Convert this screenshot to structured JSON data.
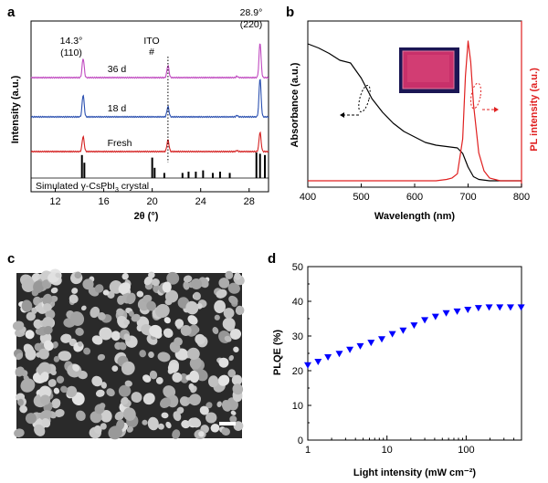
{
  "panels": {
    "a": {
      "label": "a",
      "xlabel": "2θ (°)",
      "ylabel": "Intensity (a.u.)",
      "xticks": [
        "12",
        "16",
        "20",
        "24",
        "28"
      ],
      "peak1": {
        "angle": "14.3°",
        "hkl": "(110)"
      },
      "peak2": {
        "angle": "28.9°",
        "hkl": "(220)"
      },
      "ito_label": "ITO",
      "ito_mark": "#",
      "traces": [
        {
          "name": "36 d",
          "color": "#c04ac0"
        },
        {
          "name": "18 d",
          "color": "#2b50b0"
        },
        {
          "name": "Fresh",
          "color": "#d42020"
        }
      ],
      "reference_label": "Simulated γ-CsPbI",
      "reference_sub": "3",
      "reference_suffix": " crystal"
    },
    "b": {
      "label": "b",
      "xlabel": "Wavelength (nm)",
      "ylabel_left": "Absorbance (a.u.)",
      "ylabel_right": "PL intensity (a.u.)",
      "xticks": [
        "400",
        "500",
        "600",
        "700",
        "800"
      ],
      "abs_color": "#000000",
      "pl_color": "#e02020"
    },
    "c": {
      "label": "c"
    },
    "d": {
      "label": "d",
      "xlabel": "Light intensity (mW cm⁻²)",
      "ylabel": "PLQE (%)",
      "xticks": [
        "1",
        "10",
        "100"
      ],
      "yticks": [
        "0",
        "10",
        "20",
        "30",
        "40",
        "50"
      ],
      "marker_color": "#0000ff"
    }
  },
  "chart_data": [
    {
      "panel": "a",
      "type": "line",
      "xlabel": "2θ (°)",
      "ylabel": "Intensity (a.u.)",
      "xlim": [
        10,
        29.6
      ],
      "series": [
        {
          "name": "36 d",
          "peaks": [
            {
              "x": 14.3,
              "h": 0.55
            },
            {
              "x": 21.3,
              "h": 0.35
            },
            {
              "x": 28.9,
              "h": 1.0
            }
          ]
        },
        {
          "name": "18 d",
          "peaks": [
            {
              "x": 14.3,
              "h": 0.6
            },
            {
              "x": 21.3,
              "h": 0.28
            },
            {
              "x": 28.9,
              "h": 1.05
            }
          ]
        },
        {
          "name": "Fresh",
          "peaks": [
            {
              "x": 14.3,
              "h": 0.55
            },
            {
              "x": 21.3,
              "h": 0.42
            },
            {
              "x": 28.9,
              "h": 0.7
            }
          ]
        }
      ],
      "reference_sticks": [
        {
          "x": 14.2,
          "h": 0.9
        },
        {
          "x": 14.4,
          "h": 0.6
        },
        {
          "x": 20.0,
          "h": 0.8
        },
        {
          "x": 20.2,
          "h": 0.4
        },
        {
          "x": 21.0,
          "h": 0.2
        },
        {
          "x": 22.5,
          "h": 0.2
        },
        {
          "x": 23.0,
          "h": 0.25
        },
        {
          "x": 23.6,
          "h": 0.25
        },
        {
          "x": 24.2,
          "h": 0.3
        },
        {
          "x": 25.0,
          "h": 0.2
        },
        {
          "x": 25.6,
          "h": 0.25
        },
        {
          "x": 26.4,
          "h": 0.2
        },
        {
          "x": 28.6,
          "h": 1.0
        },
        {
          "x": 28.9,
          "h": 0.95
        },
        {
          "x": 29.3,
          "h": 0.9
        }
      ]
    },
    {
      "panel": "b",
      "type": "line",
      "xlabel": "Wavelength (nm)",
      "ylabel": "Absorbance (a.u.)",
      "y2label": "PL intensity (a.u.)",
      "xlim": [
        400,
        800
      ],
      "series": [
        {
          "name": "Absorbance",
          "x": [
            400,
            420,
            440,
            460,
            480,
            500,
            520,
            540,
            560,
            580,
            600,
            620,
            640,
            660,
            680,
            690,
            700,
            710,
            720,
            740,
            760,
            800
          ],
          "y": [
            1.0,
            0.97,
            0.93,
            0.88,
            0.86,
            0.75,
            0.6,
            0.5,
            0.42,
            0.36,
            0.32,
            0.28,
            0.26,
            0.25,
            0.24,
            0.2,
            0.1,
            0.03,
            0.01,
            0.0,
            0.0,
            0.0
          ]
        },
        {
          "name": "PL",
          "x": [
            600,
            640,
            660,
            670,
            680,
            690,
            695,
            700,
            705,
            710,
            720,
            730,
            740,
            760,
            800
          ],
          "y": [
            0.0,
            0.0,
            0.01,
            0.02,
            0.05,
            0.3,
            0.75,
            1.0,
            0.85,
            0.55,
            0.2,
            0.07,
            0.02,
            0.0,
            0.0
          ]
        }
      ]
    },
    {
      "panel": "d",
      "type": "scatter",
      "xlabel": "Light intensity (mW cm⁻²)",
      "ylabel": "PLQE (%)",
      "xscale": "log",
      "xlim": [
        1,
        500
      ],
      "ylim": [
        0,
        50
      ],
      "series": [
        {
          "x": [
            1.0,
            1.35,
            1.8,
            2.5,
            3.4,
            4.6,
            6.3,
            8.6,
            11.7,
            16,
            22,
            30,
            41,
            56,
            77,
            105,
            143,
            195,
            266,
            363,
            495
          ],
          "y": [
            21.5,
            22.5,
            23.8,
            24.8,
            26,
            27,
            28,
            29,
            30.5,
            31.5,
            33,
            34.5,
            35.5,
            36.5,
            37,
            37.5,
            38,
            38.2,
            38.2,
            38.2,
            38.2
          ]
        }
      ]
    }
  ]
}
